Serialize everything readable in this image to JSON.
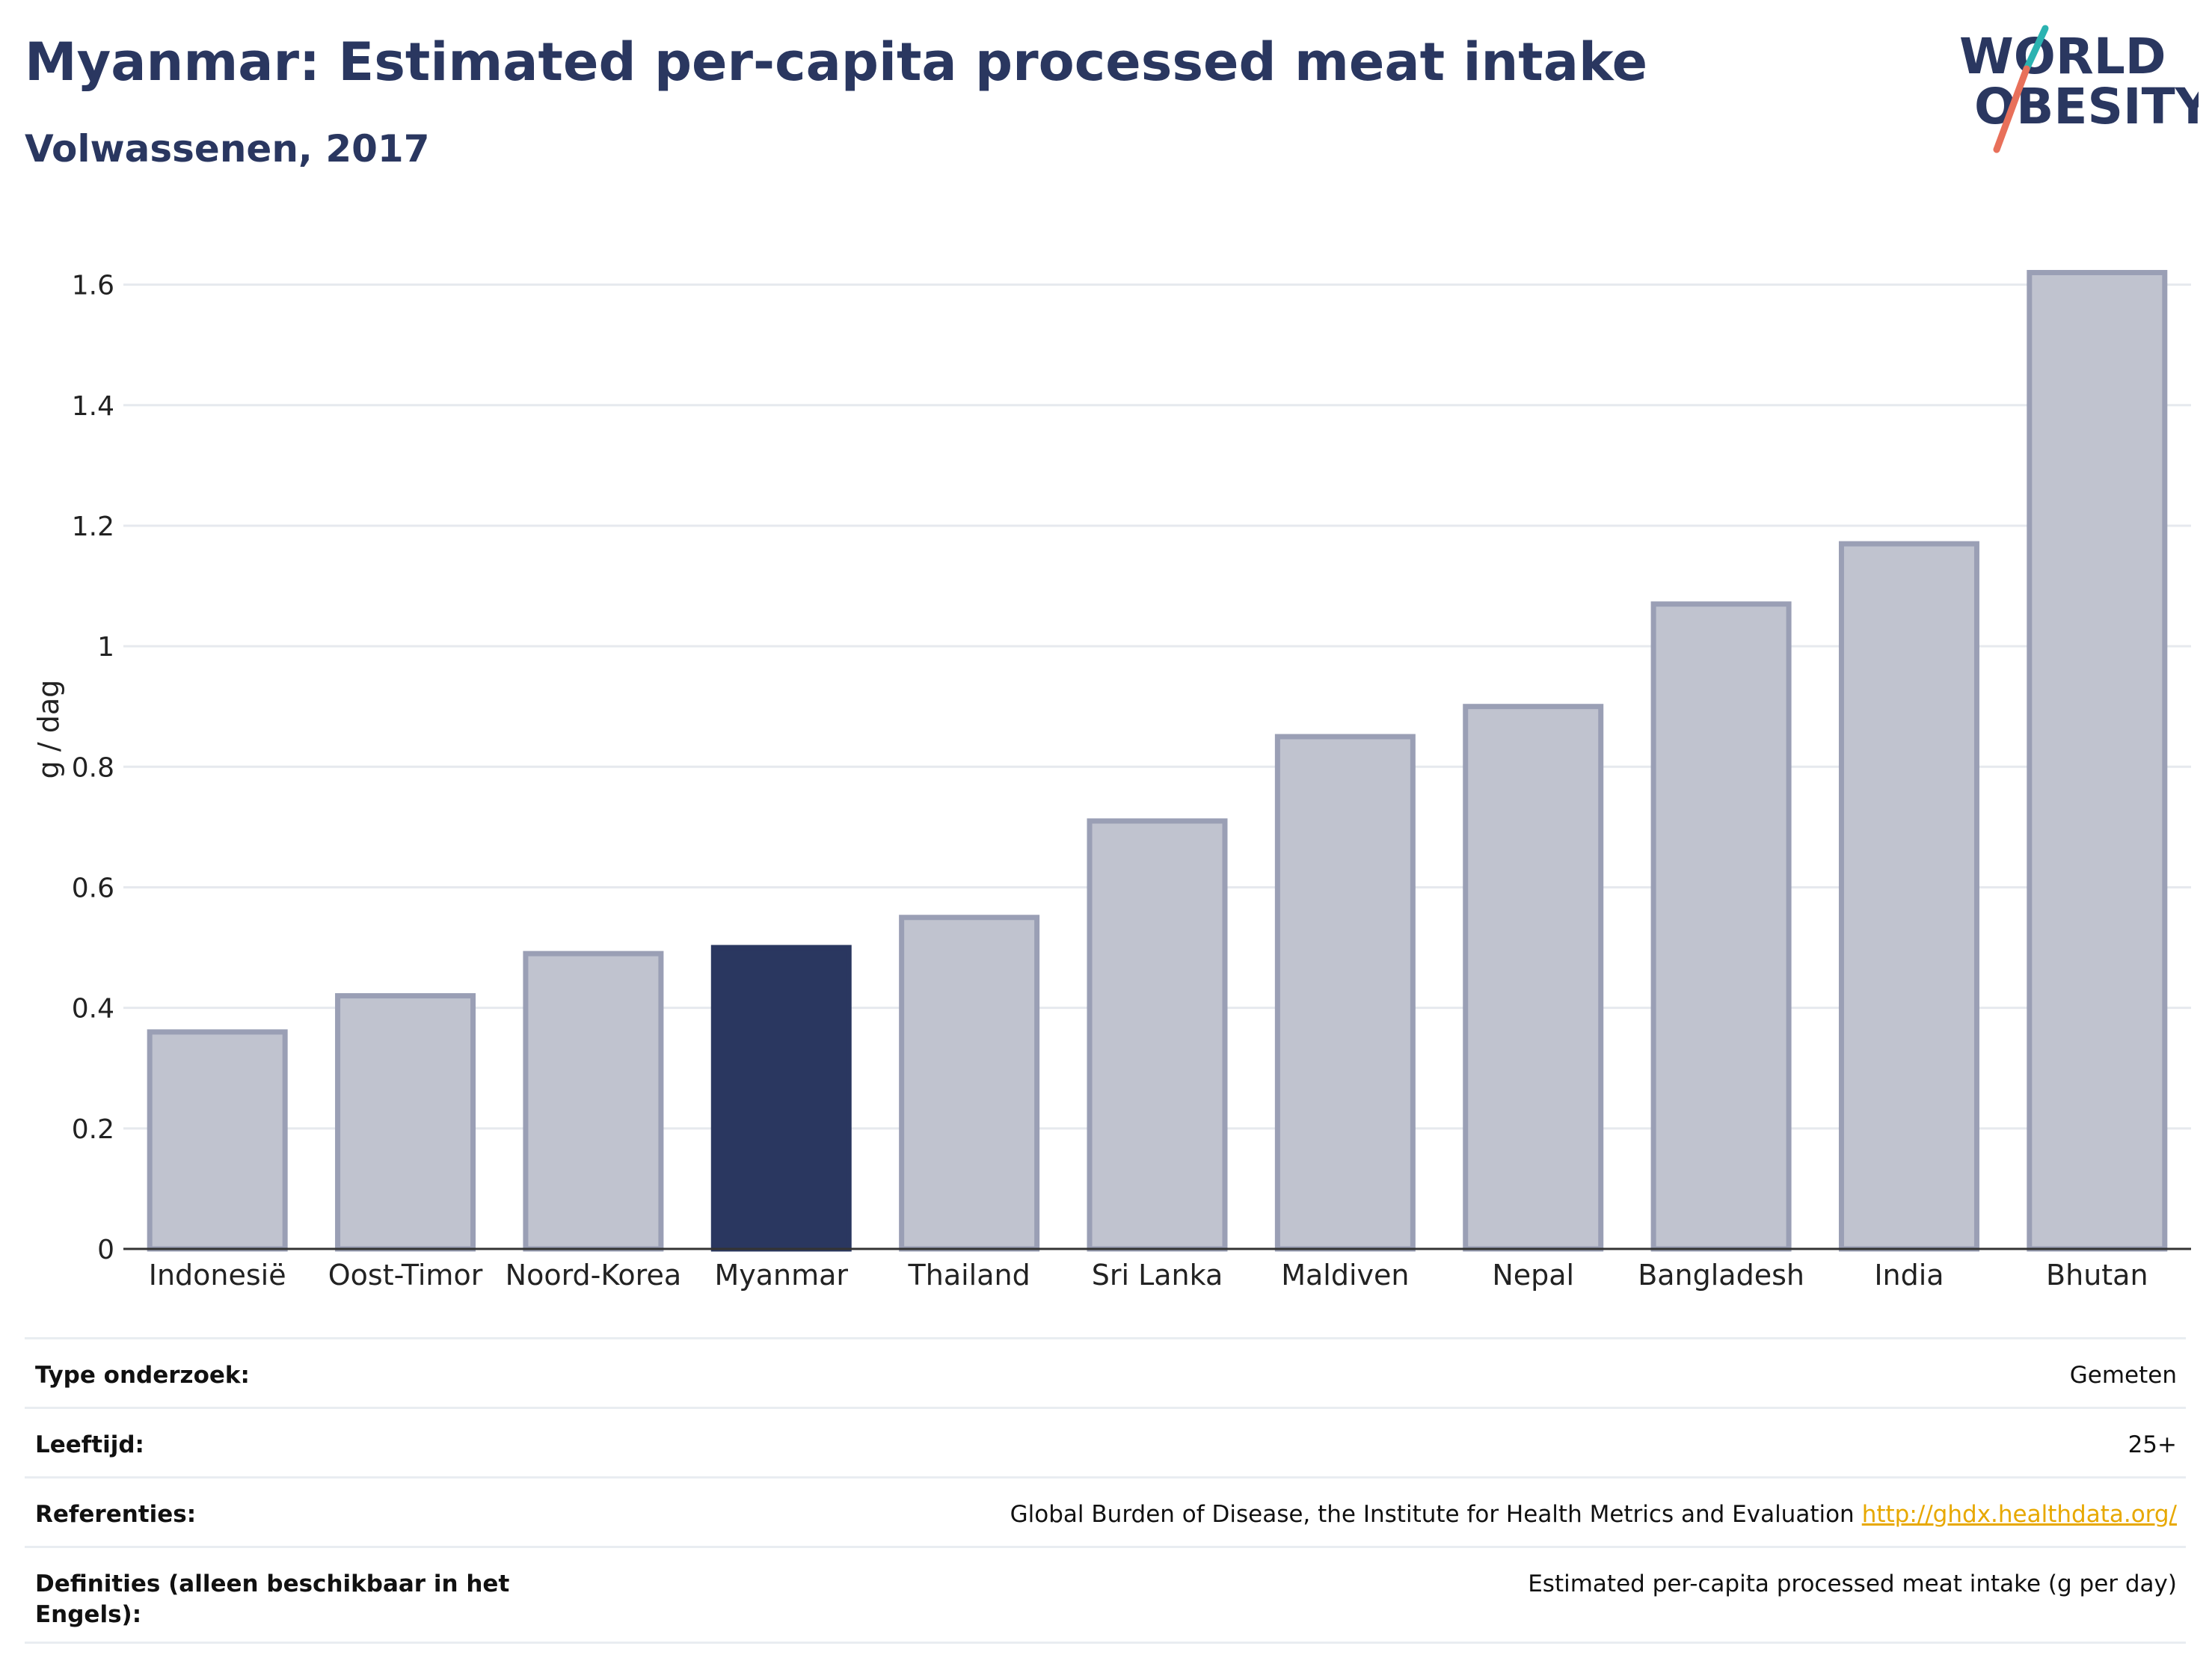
{
  "header": {
    "title": "Myanmar: Estimated per-capita processed meat intake",
    "subtitle": "Volwassenen, 2017"
  },
  "logo": {
    "line1": "WORLD",
    "line2": "OBESITY",
    "colors": {
      "text": "#2a3760",
      "slash_teal": "#2bb3b1",
      "slash_coral": "#e8705a"
    }
  },
  "chart_data": {
    "type": "bar",
    "categories": [
      "Indonesië",
      "Oost-Timor",
      "Noord-Korea",
      "Myanmar",
      "Thailand",
      "Sri Lanka",
      "Maldiven",
      "Nepal",
      "Bangladesh",
      "India",
      "Bhutan"
    ],
    "values": [
      0.36,
      0.42,
      0.49,
      0.5,
      0.55,
      0.71,
      0.85,
      0.9,
      1.07,
      1.17,
      1.62
    ],
    "highlight": "Myanmar",
    "title": "Myanmar: Estimated per-capita processed meat intake",
    "subtitle": "Volwassenen, 2017",
    "xlabel": "",
    "ylabel": "g / dag",
    "ylim": [
      0,
      1.7
    ],
    "yticks": [
      0,
      0.2,
      0.4,
      0.6,
      0.8,
      1,
      1.2,
      1.4,
      1.6
    ],
    "ytick_labels": [
      "0",
      "0.2",
      "0.4",
      "0.6",
      "0.8",
      "1",
      "1.2",
      "1.4",
      "1.6"
    ],
    "grid": true,
    "colors": {
      "bar": "#c0c3cf",
      "bar_stroke": "#9a9fb5",
      "highlight": "#2a3760",
      "grid": "#e6e9ee",
      "axis": "#333333"
    }
  },
  "meta": {
    "rows": [
      {
        "key": "Type onderzoek:",
        "value": "Gemeten"
      },
      {
        "key": "Leeftijd:",
        "value": "25+"
      },
      {
        "key": "Referenties:",
        "value": "Global Burden of Disease, the Institute for Health Metrics and Evaluation",
        "link": "http://ghdx.healthdata.org/"
      },
      {
        "key": "Definities (alleen beschikbaar in het Engels):",
        "value": "Estimated per-capita processed meat intake (g per day)"
      }
    ]
  }
}
